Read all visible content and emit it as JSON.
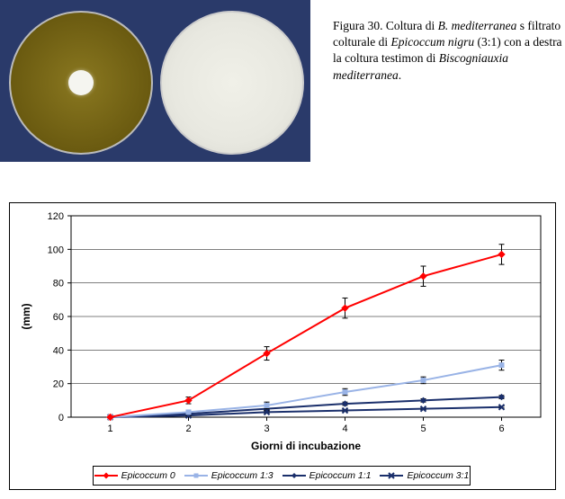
{
  "caption": {
    "fig_num_prefix": "Figura 30. Coltura di ",
    "italic_1": "B. mediterranea",
    "mid_1": " s filtrato colturale di ",
    "italic_2": "Epicoccum nigru",
    "mid_2": " (3:1) con a destra la coltura testimon di ",
    "italic_3": "Biscogniauxia mediterranea",
    "tail": "."
  },
  "chart": {
    "type": "line",
    "xlabel": "Giorni di incubazione",
    "ylabel": "(mm)",
    "label_fontsize": 12,
    "label_fontweight": "bold",
    "axis_fontfamily": "Arial, sans-serif",
    "tick_fontsize": 11,
    "xcategories": [
      "1",
      "2",
      "3",
      "4",
      "5",
      "6"
    ],
    "ylim": [
      0,
      120
    ],
    "ytick_step": 20,
    "yticks": [
      0,
      20,
      40,
      60,
      80,
      100,
      120
    ],
    "background_color": "#ffffff",
    "grid_color": "#000000",
    "grid_width": 0.5,
    "axis_color": "#000000",
    "series": [
      {
        "name": "Epicoccum 0",
        "color": "#ff0000",
        "line_width": 2,
        "marker": "diamond",
        "marker_size": 7,
        "marker_fill": "#ff0000",
        "values": [
          0,
          10,
          38,
          65,
          84,
          97
        ],
        "error": [
          0,
          2,
          4,
          6,
          6,
          6
        ]
      },
      {
        "name": "Epicoccum 1:3",
        "color": "#99b3e6",
        "line_width": 2,
        "marker": "square",
        "marker_size": 5,
        "marker_fill": "#99b3e6",
        "values": [
          0,
          3,
          7,
          15,
          22,
          31
        ],
        "error": [
          0,
          1,
          2,
          2,
          2,
          3
        ]
      },
      {
        "name": "Epicoccum 1:1",
        "color": "#1a2f6b",
        "line_width": 2,
        "marker": "diamond",
        "marker_size": 6,
        "marker_fill": "#1a2f6b",
        "values": [
          0,
          2,
          5,
          8,
          10,
          12
        ],
        "error": [
          0,
          1,
          1,
          1,
          1,
          1
        ]
      },
      {
        "name": "Epicoccum 3:1",
        "color": "#1a2f6b",
        "line_width": 2,
        "marker": "x",
        "marker_size": 6,
        "marker_fill": "#1a2f6b",
        "values": [
          0,
          1,
          3,
          4,
          5,
          6
        ],
        "error": [
          0,
          0.5,
          0.5,
          0.5,
          0.5,
          0.5
        ]
      }
    ]
  }
}
